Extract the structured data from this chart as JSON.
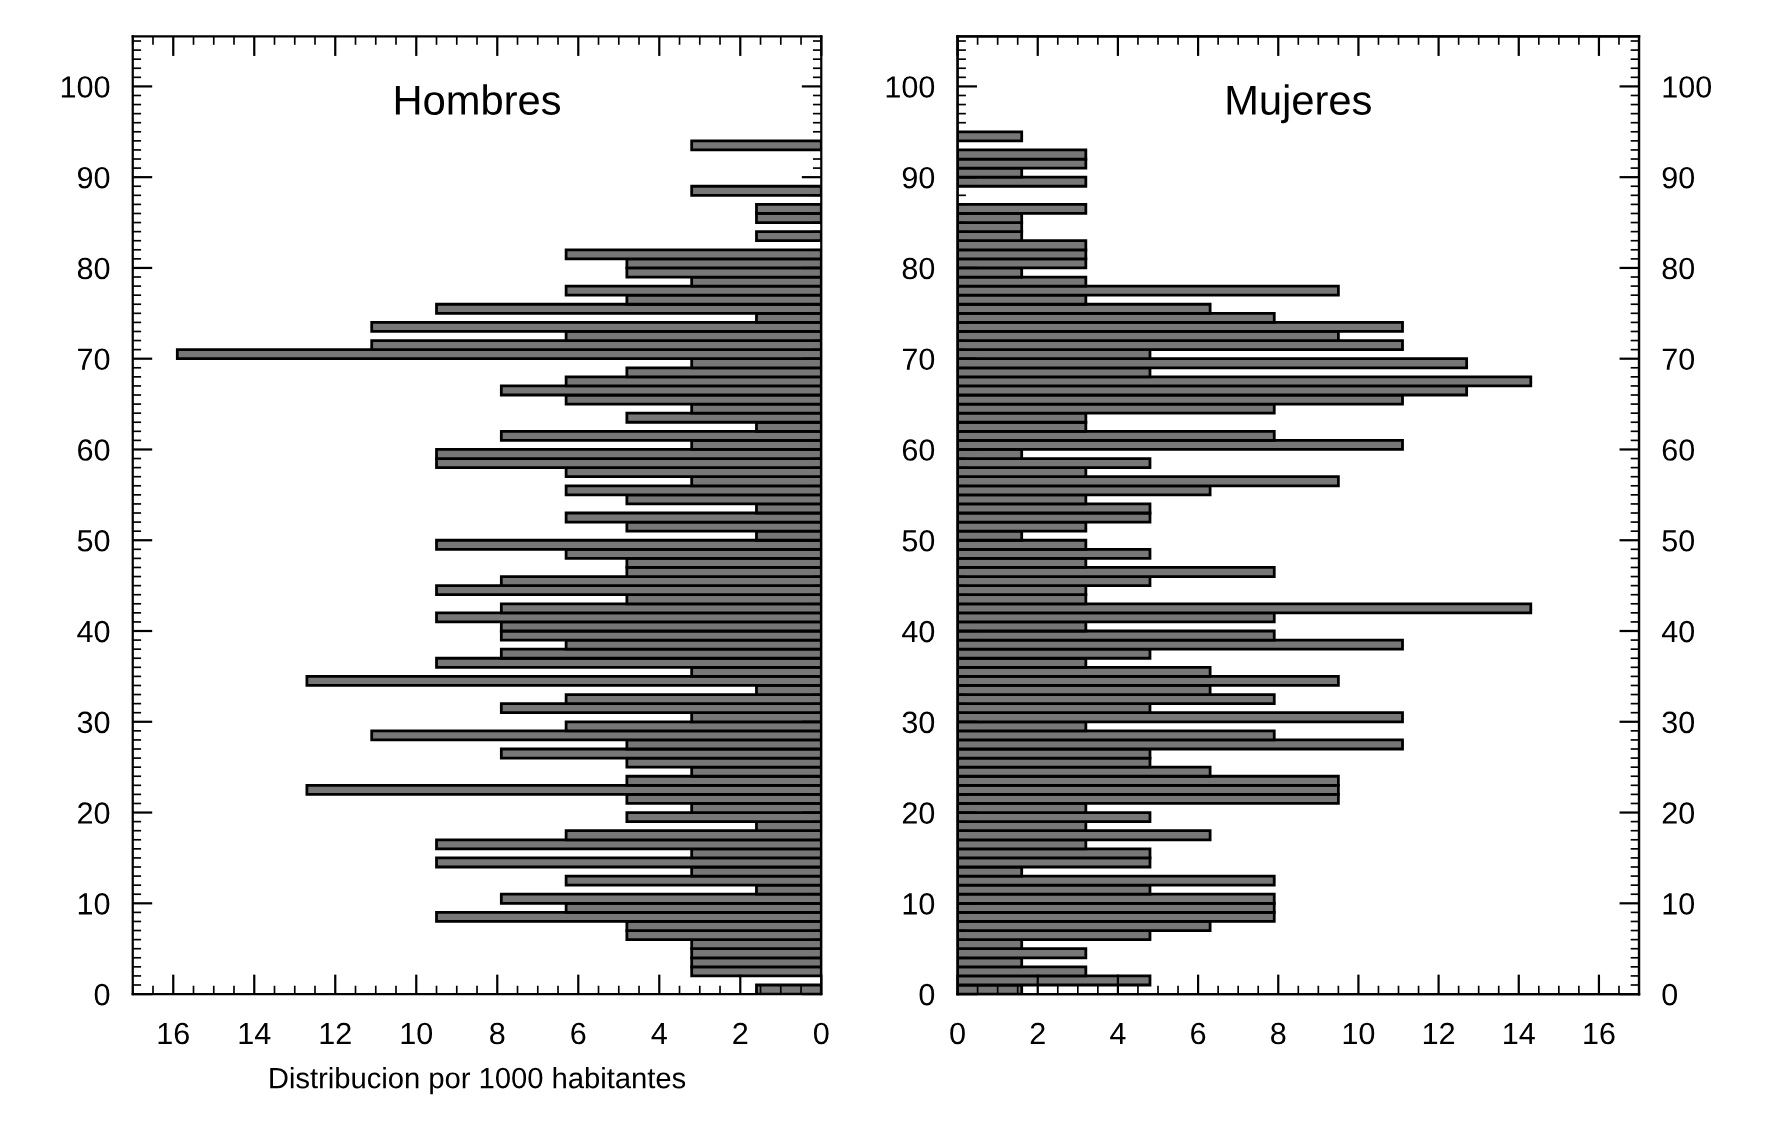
{
  "chart_data": [
    {
      "type": "bar",
      "orientation": "horizontal",
      "title": "Hombres",
      "xlabel": "Distribucion por 1000 habitantes",
      "x": [
        0,
        1,
        2,
        3,
        4,
        5,
        6,
        7,
        8,
        9,
        10,
        11,
        12,
        13,
        14,
        15,
        16,
        17,
        18,
        19,
        20,
        21,
        22,
        23,
        24,
        25,
        26,
        27,
        28,
        29,
        30,
        31,
        32,
        33,
        34,
        35,
        36,
        37,
        38,
        39,
        40,
        41,
        42,
        43,
        44,
        45,
        46,
        47,
        48,
        49,
        50,
        51,
        52,
        53,
        54,
        55,
        56,
        57,
        58,
        59,
        60,
        61,
        62,
        63,
        64,
        65,
        66,
        67,
        68,
        69,
        70,
        71,
        72,
        73,
        74,
        75,
        76,
        77,
        78,
        79,
        80,
        81,
        82,
        83,
        84,
        85,
        86,
        87,
        88,
        89,
        90,
        91,
        92,
        93
      ],
      "values": [
        1.6,
        null,
        3.2,
        3.2,
        3.2,
        3.2,
        4.8,
        4.8,
        9.5,
        6.3,
        7.9,
        1.6,
        6.3,
        3.2,
        9.5,
        3.2,
        9.5,
        6.3,
        1.6,
        4.8,
        3.2,
        4.8,
        12.7,
        4.8,
        3.2,
        4.8,
        7.9,
        4.8,
        11.1,
        6.3,
        3.2,
        7.9,
        6.3,
        1.6,
        12.7,
        3.2,
        9.5,
        7.9,
        6.3,
        7.9,
        7.9,
        9.5,
        7.9,
        4.8,
        9.5,
        7.9,
        4.8,
        4.8,
        6.3,
        9.5,
        1.6,
        4.8,
        6.3,
        1.6,
        4.8,
        6.3,
        3.2,
        6.3,
        9.5,
        9.5,
        3.2,
        7.9,
        1.6,
        4.8,
        3.2,
        6.3,
        7.9,
        6.3,
        4.8,
        3.2,
        15.9,
        11.1,
        6.3,
        11.1,
        1.6,
        9.5,
        4.8,
        6.3,
        3.2,
        4.8,
        4.8,
        6.3,
        null,
        1.6,
        null,
        1.6,
        1.6,
        null,
        3.2,
        null,
        null,
        null,
        null,
        3.2
      ],
      "color": "#777777",
      "xlim": [
        17,
        0
      ],
      "xticks": [
        16,
        14,
        12,
        10,
        8,
        6,
        4,
        2,
        0
      ],
      "ylim": [
        0,
        105.5
      ],
      "yticks": [
        0,
        10,
        20,
        30,
        40,
        50,
        60,
        70,
        80,
        90,
        100
      ]
    },
    {
      "type": "bar",
      "orientation": "horizontal",
      "title": "Mujeres",
      "x": [
        0,
        1,
        2,
        3,
        4,
        5,
        6,
        7,
        8,
        9,
        10,
        11,
        12,
        13,
        14,
        15,
        16,
        17,
        18,
        19,
        20,
        21,
        22,
        23,
        24,
        25,
        26,
        27,
        28,
        29,
        30,
        31,
        32,
        33,
        34,
        35,
        36,
        37,
        38,
        39,
        40,
        41,
        42,
        43,
        44,
        45,
        46,
        47,
        48,
        49,
        50,
        51,
        52,
        53,
        54,
        55,
        56,
        57,
        58,
        59,
        60,
        61,
        62,
        63,
        64,
        65,
        66,
        67,
        68,
        69,
        70,
        71,
        72,
        73,
        74,
        75,
        76,
        77,
        78,
        79,
        80,
        81,
        82,
        83,
        84,
        85,
        86,
        87,
        88,
        89,
        90,
        91,
        92,
        93,
        94
      ],
      "values": [
        1.6,
        4.8,
        3.2,
        1.6,
        3.2,
        1.6,
        4.8,
        6.3,
        7.9,
        7.9,
        7.9,
        4.8,
        7.9,
        1.6,
        4.8,
        4.8,
        3.2,
        6.3,
        3.2,
        4.8,
        3.2,
        9.5,
        9.5,
        9.5,
        6.3,
        4.8,
        4.8,
        11.1,
        7.9,
        3.2,
        11.1,
        4.8,
        7.9,
        6.3,
        9.5,
        6.3,
        3.2,
        4.8,
        11.1,
        7.9,
        3.2,
        7.9,
        14.3,
        3.2,
        3.2,
        4.8,
        7.9,
        3.2,
        4.8,
        3.2,
        1.6,
        3.2,
        4.8,
        4.8,
        3.2,
        6.3,
        9.5,
        3.2,
        4.8,
        1.6,
        11.1,
        7.9,
        3.2,
        3.2,
        7.9,
        11.1,
        12.7,
        14.3,
        4.8,
        12.7,
        4.8,
        11.1,
        9.5,
        11.1,
        7.9,
        6.3,
        3.2,
        9.5,
        3.2,
        1.6,
        3.2,
        3.2,
        3.2,
        1.6,
        1.6,
        1.6,
        3.2,
        null,
        null,
        3.2,
        1.6,
        3.2,
        3.2,
        null,
        1.6
      ],
      "color": "#777777",
      "xlim": [
        0,
        17
      ],
      "xticks": [
        0,
        2,
        4,
        6,
        8,
        10,
        12,
        14,
        16
      ],
      "ylim": [
        0,
        105.5
      ],
      "yticks": [
        0,
        10,
        20,
        30,
        40,
        50,
        60,
        70,
        80,
        90,
        100
      ],
      "y2lim": [
        0,
        105.5
      ],
      "y2ticks": [
        0,
        10,
        20,
        30,
        40,
        50,
        60,
        70,
        80,
        90,
        100
      ]
    }
  ]
}
